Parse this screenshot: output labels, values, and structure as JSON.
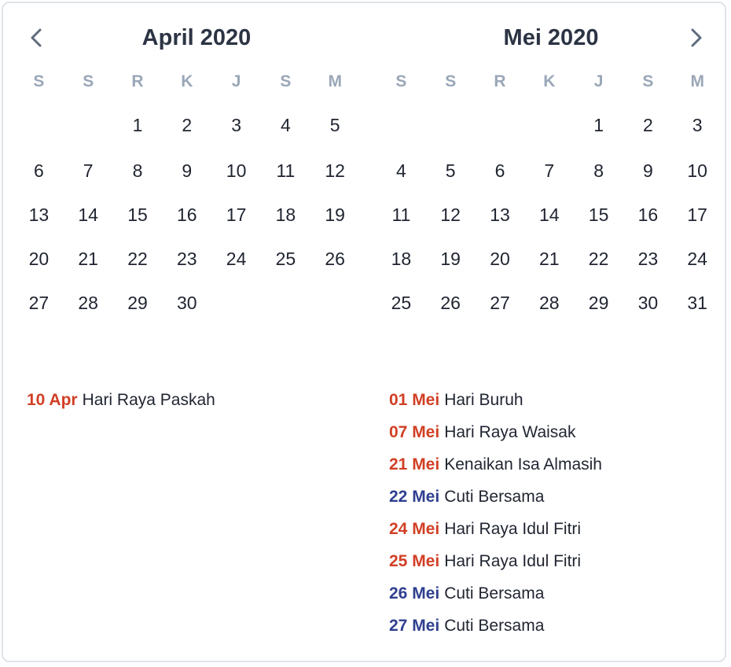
{
  "colors": {
    "national_holiday": "#d13f25",
    "collective_leave": "#2f3f8f",
    "weekday_header": "#9aa7b8",
    "title": "#2c3444"
  },
  "nav": {
    "prev_icon": "chevron-left-icon",
    "next_icon": "chevron-right-icon"
  },
  "weekdays": [
    "S",
    "S",
    "R",
    "K",
    "J",
    "S",
    "M"
  ],
  "months": [
    {
      "title": "April 2020",
      "weeks": [
        [
          "",
          "",
          "1",
          "2",
          "3",
          "4",
          "5"
        ],
        [
          "6",
          "7",
          "8",
          "9",
          "10",
          "11",
          "12"
        ],
        [
          "13",
          "14",
          "15",
          "16",
          "17",
          "18",
          "19"
        ],
        [
          "20",
          "21",
          "22",
          "23",
          "24",
          "25",
          "26"
        ],
        [
          "27",
          "28",
          "29",
          "30",
          "",
          "",
          ""
        ]
      ],
      "holidays": [
        {
          "date": "10 Apr",
          "name": "Hari Raya Paskah",
          "type": "national"
        }
      ]
    },
    {
      "title": "Mei 2020",
      "weeks": [
        [
          "",
          "",
          "",
          "",
          "1",
          "2",
          "3"
        ],
        [
          "4",
          "5",
          "6",
          "7",
          "8",
          "9",
          "10"
        ],
        [
          "11",
          "12",
          "13",
          "14",
          "15",
          "16",
          "17"
        ],
        [
          "18",
          "19",
          "20",
          "21",
          "22",
          "23",
          "24"
        ],
        [
          "25",
          "26",
          "27",
          "28",
          "29",
          "30",
          "31"
        ]
      ],
      "holidays": [
        {
          "date": "01 Mei",
          "name": "Hari Buruh",
          "type": "national"
        },
        {
          "date": "07 Mei",
          "name": "Hari Raya Waisak",
          "type": "national"
        },
        {
          "date": "21 Mei",
          "name": "Kenaikan Isa Almasih",
          "type": "national"
        },
        {
          "date": "22 Mei",
          "name": "Cuti Bersama",
          "type": "leave"
        },
        {
          "date": "24 Mei",
          "name": "Hari Raya Idul Fitri",
          "type": "national"
        },
        {
          "date": "25 Mei",
          "name": "Hari Raya Idul Fitri",
          "type": "national"
        },
        {
          "date": "26 Mei",
          "name": "Cuti Bersama",
          "type": "leave"
        },
        {
          "date": "27 Mei",
          "name": "Cuti Bersama",
          "type": "leave"
        }
      ]
    }
  ]
}
